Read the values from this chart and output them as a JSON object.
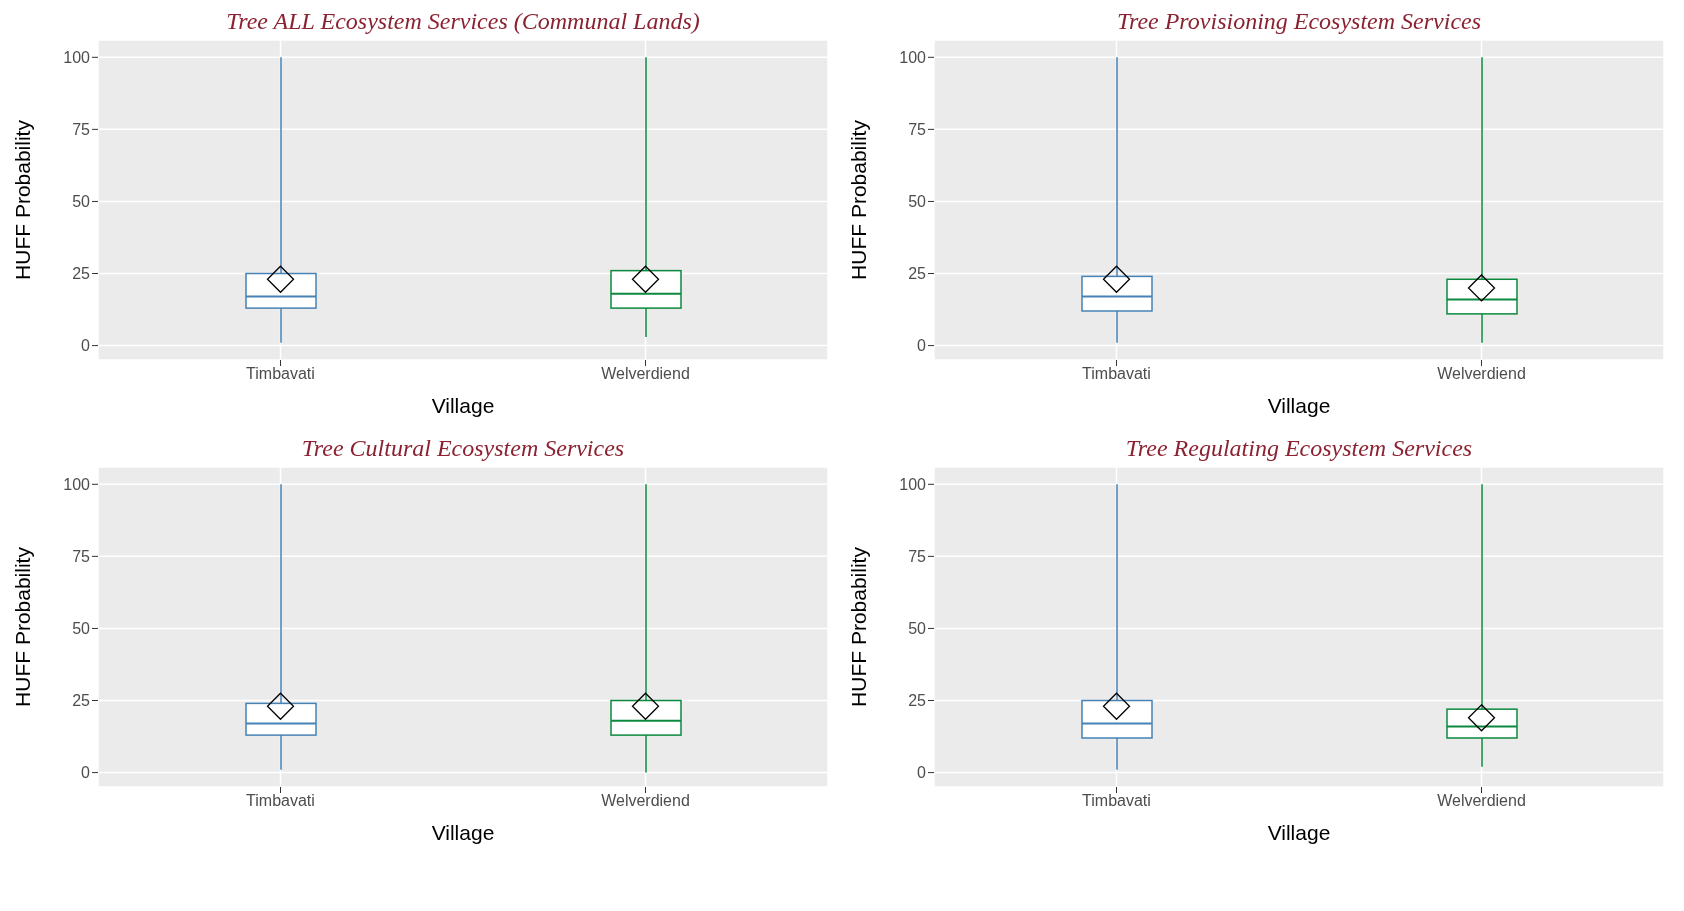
{
  "chart_data": [
    {
      "type": "box",
      "title": "Tree ALL Ecosystem Services (Communal Lands)",
      "xlabel": "Village",
      "ylabel": "HUFF Probability",
      "categories": [
        "Timbavati",
        "Welverdiend"
      ],
      "colors": [
        "#4682b4",
        "#0b8a3e"
      ],
      "boxes": [
        {
          "low": 1,
          "q1": 13,
          "median": 17,
          "q3": 25,
          "high": 100,
          "mean": 23
        },
        {
          "low": 3,
          "q1": 13,
          "median": 18,
          "q3": 26,
          "high": 100,
          "mean": 23
        }
      ],
      "ylim": [
        -5,
        106
      ],
      "yticks": [
        0,
        25,
        50,
        75,
        100
      ],
      "grid": true
    },
    {
      "type": "box",
      "title": "Tree Provisioning Ecosystem Services",
      "xlabel": "Village",
      "ylabel": "HUFF Probability",
      "categories": [
        "Timbavati",
        "Welverdiend"
      ],
      "colors": [
        "#4682b4",
        "#0b8a3e"
      ],
      "boxes": [
        {
          "low": 1,
          "q1": 12,
          "median": 17,
          "q3": 24,
          "high": 100,
          "mean": 23
        },
        {
          "low": 1,
          "q1": 11,
          "median": 16,
          "q3": 23,
          "high": 100,
          "mean": 20
        }
      ],
      "ylim": [
        -5,
        106
      ],
      "yticks": [
        0,
        25,
        50,
        75,
        100
      ],
      "grid": true
    },
    {
      "type": "box",
      "title": "Tree Cultural Ecosystem Services",
      "xlabel": "Village",
      "ylabel": "HUFF Probability",
      "categories": [
        "Timbavati",
        "Welverdiend"
      ],
      "colors": [
        "#4682b4",
        "#0b8a3e"
      ],
      "boxes": [
        {
          "low": 1,
          "q1": 13,
          "median": 17,
          "q3": 24,
          "high": 100,
          "mean": 23
        },
        {
          "low": 0,
          "q1": 13,
          "median": 18,
          "q3": 25,
          "high": 100,
          "mean": 23
        }
      ],
      "ylim": [
        -5,
        106
      ],
      "yticks": [
        0,
        25,
        50,
        75,
        100
      ],
      "grid": true
    },
    {
      "type": "box",
      "title": "Tree Regulating Ecosystem Services",
      "xlabel": "Village",
      "ylabel": "HUFF Probability",
      "categories": [
        "Timbavati",
        "Welverdiend"
      ],
      "colors": [
        "#4682b4",
        "#0b8a3e"
      ],
      "boxes": [
        {
          "low": 1,
          "q1": 12,
          "median": 17,
          "q3": 25,
          "high": 100,
          "mean": 23
        },
        {
          "low": 2,
          "q1": 12,
          "median": 16,
          "q3": 22,
          "high": 100,
          "mean": 19
        }
      ],
      "ylim": [
        -5,
        106
      ],
      "yticks": [
        0,
        25,
        50,
        75,
        100
      ],
      "grid": true
    }
  ]
}
